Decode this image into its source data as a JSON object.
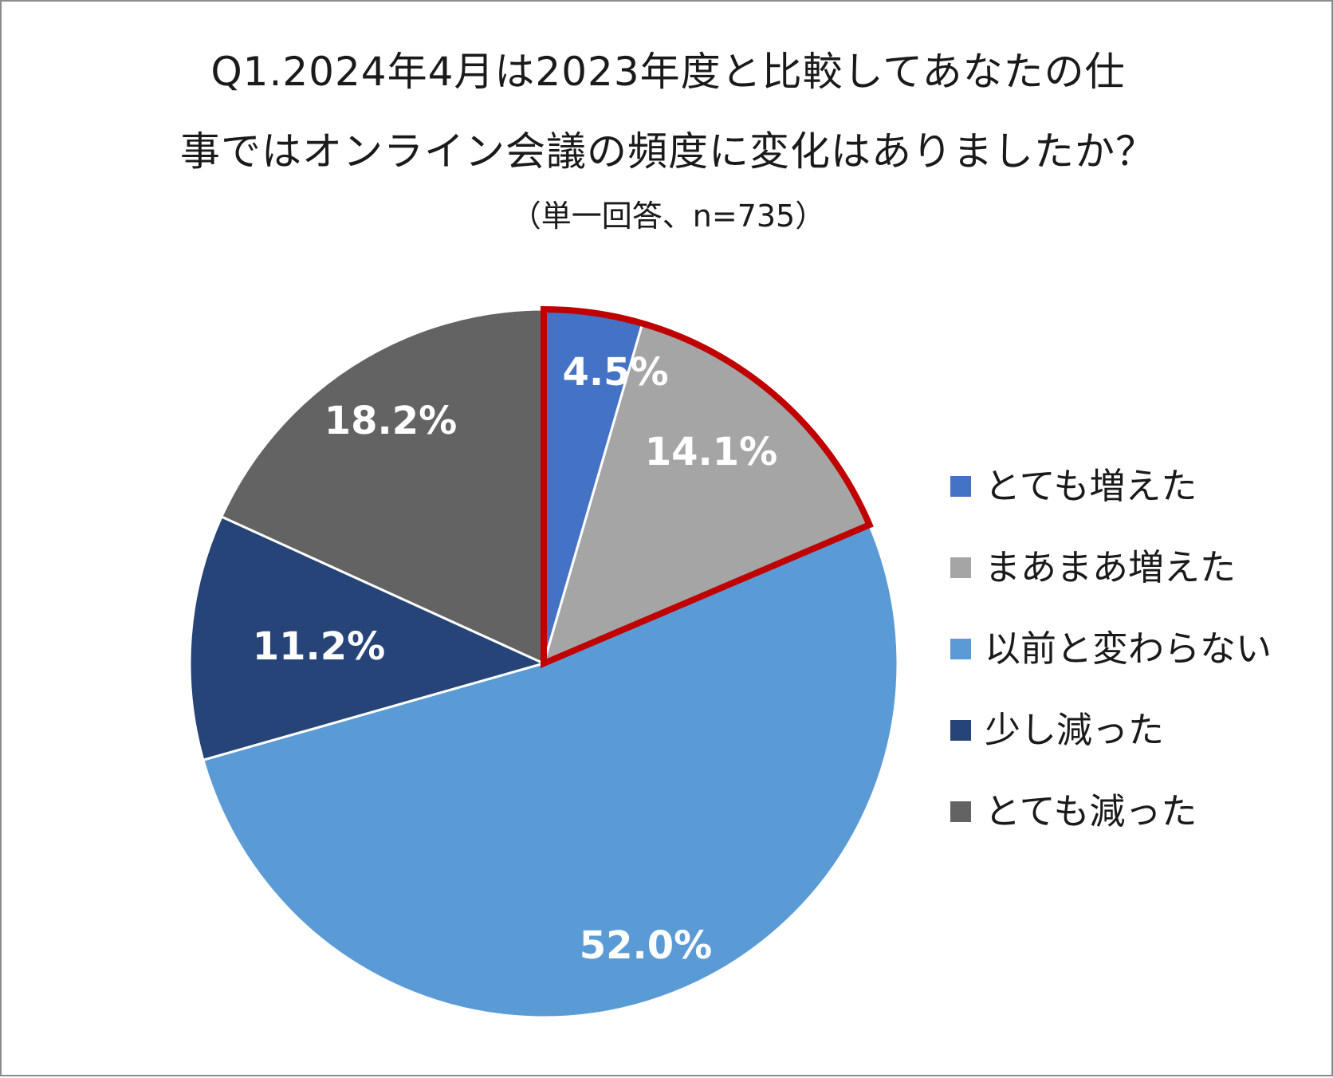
{
  "chart_data": {
    "type": "pie",
    "title_lines": [
      "Q1.2024年4月は2023年度と比較してあなたの仕",
      "事ではオンライン会議の頻度に変化はありましたか？"
    ],
    "subtitle": "（単一回答、n=735）",
    "categories": [
      "とても増えた",
      "まあまあ増えた",
      "以前と変わらない",
      "少し減った",
      "とても減った"
    ],
    "values": [
      4.5,
      14.1,
      52.0,
      11.2,
      18.2
    ],
    "labels": [
      "4.5%",
      "14.1%",
      "52.0%",
      "11.2%",
      "18.2%"
    ],
    "colors": [
      "#4472c4",
      "#a5a5a5",
      "#5b9bd5",
      "#264478",
      "#636363"
    ],
    "highlight": {
      "categories": [
        "とても増えた",
        "まあまあ増えた"
      ],
      "color": "#c00000"
    },
    "legend_position": "right"
  }
}
